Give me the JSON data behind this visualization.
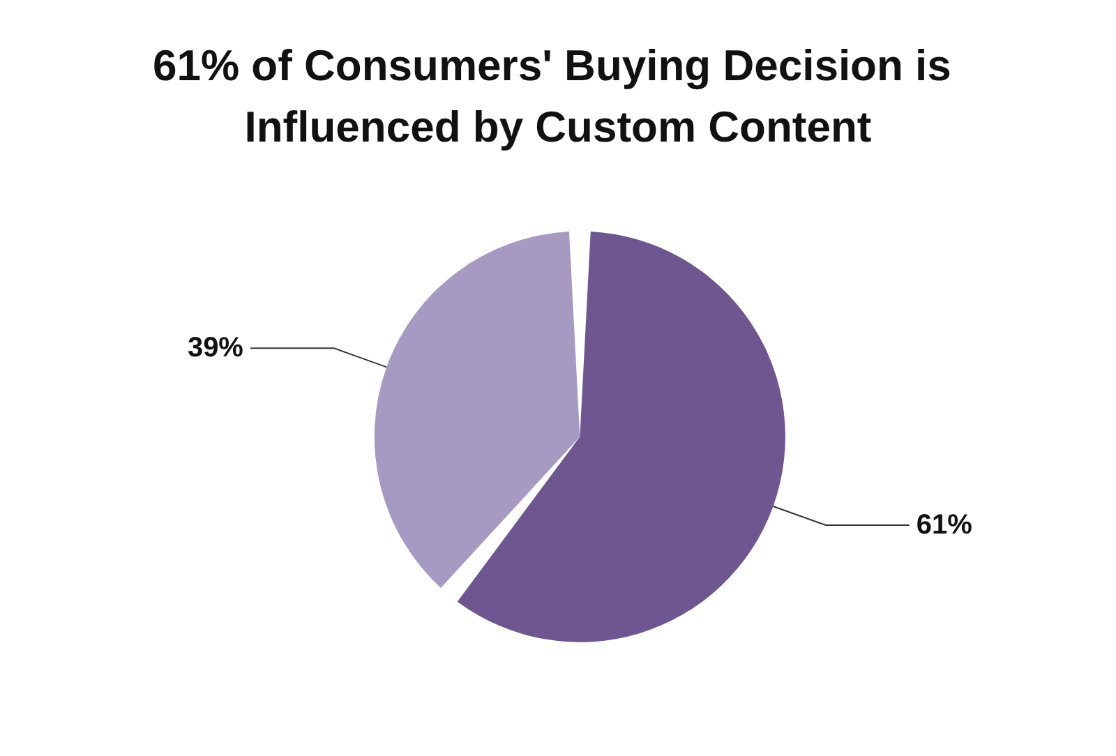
{
  "chart_data": {
    "type": "pie",
    "title": "61% of Consumers' Buying Decision is Influenced by Custom Content",
    "categories": [
      null,
      null
    ],
    "values": [
      61,
      39
    ],
    "colors": [
      "#6e5690",
      "#a79ac2"
    ],
    "value_labels": [
      "61%",
      "39%"
    ]
  }
}
